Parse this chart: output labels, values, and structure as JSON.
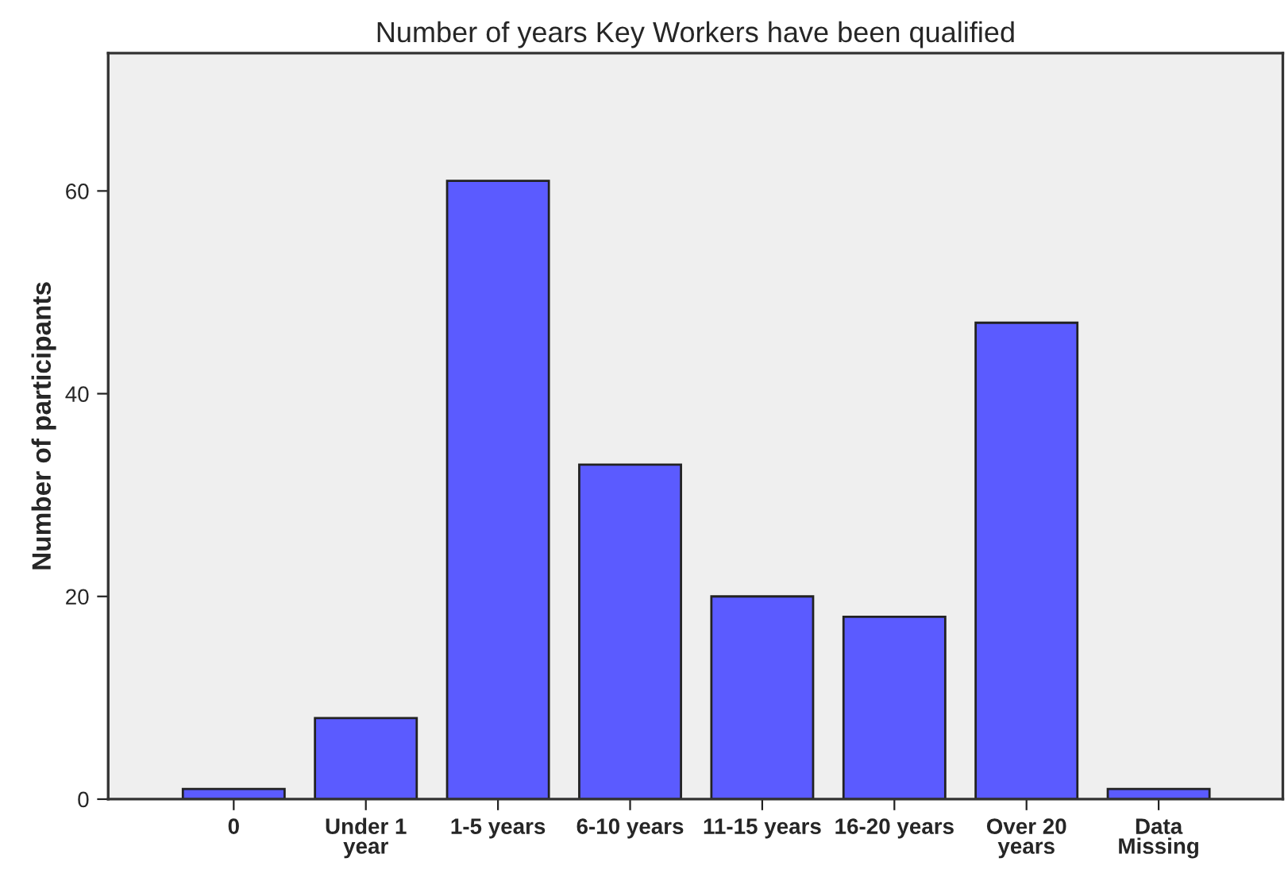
{
  "chart_data": {
    "type": "bar",
    "title": "Number of years Key Workers have been qualified",
    "ylabel": "Number of participants",
    "categories": [
      "0",
      "Under 1\nyear",
      "1-5 years",
      "6-10 years",
      "11-15 years",
      "16-20 years",
      "Over 20\nyears",
      "Data\nMissing"
    ],
    "values": [
      1,
      8,
      61,
      33,
      20,
      18,
      47,
      1
    ],
    "color": "#5b5bff",
    "ylim": [
      0,
      73.6
    ],
    "yticks": [
      0,
      20,
      40,
      60
    ],
    "grid": false,
    "legend": false
  }
}
